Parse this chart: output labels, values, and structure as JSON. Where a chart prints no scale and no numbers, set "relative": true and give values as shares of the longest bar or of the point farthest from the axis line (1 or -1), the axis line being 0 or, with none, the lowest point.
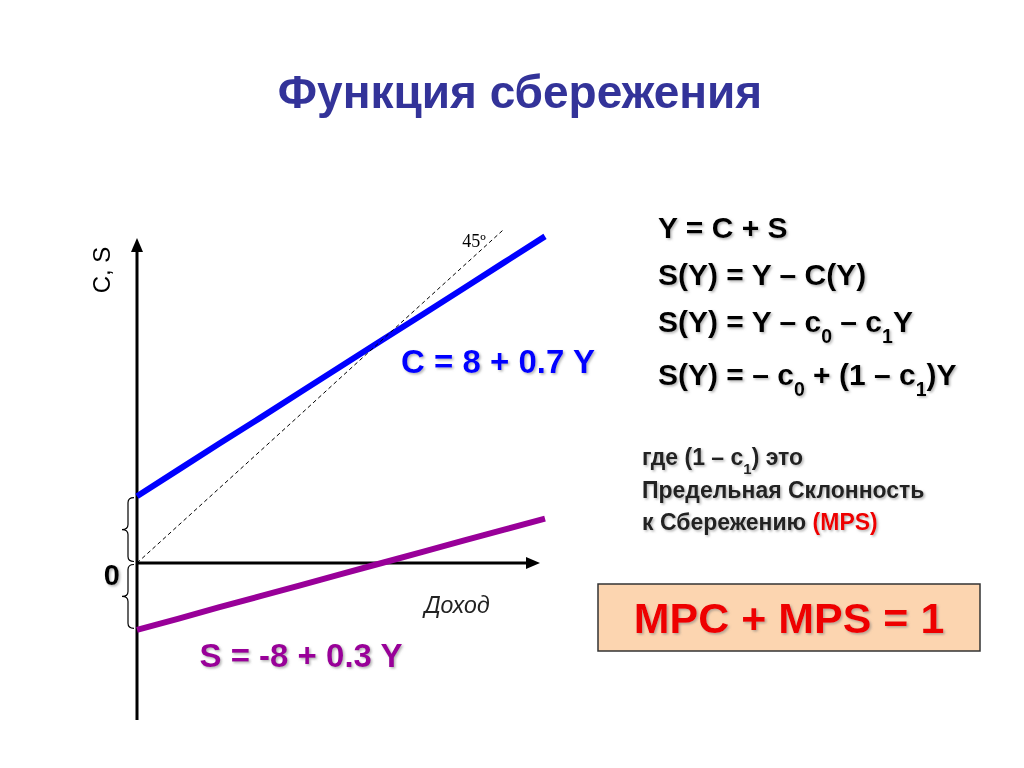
{
  "chart_data": {
    "type": "line",
    "title": "Функция сбережения",
    "xlabel": "Доход",
    "ylabel": "C, S",
    "relative": true,
    "categories": [
      null,
      null,
      null,
      null,
      null,
      null,
      null,
      null,
      null,
      null,
      null
    ],
    "series": [
      {
        "name": "C = 8 + 0.7 Y",
        "color": "#0000ff",
        "line_style": "solid",
        "values": [
          0.2,
          0.278,
          0.356,
          0.433,
          0.511,
          0.589,
          0.667,
          0.744,
          0.822,
          0.9,
          0.978
        ]
      },
      {
        "name": "S = -8 + 0.3 Y",
        "color": "#990099",
        "line_style": "solid",
        "values": [
          -0.2,
          -0.167,
          -0.133,
          -0.1,
          -0.067,
          -0.033,
          0,
          0.033,
          0.067,
          0.1,
          0.133
        ]
      },
      {
        "name": "45º",
        "color": "#000000",
        "line_style": "dashed",
        "values": [
          0,
          0.111,
          0.222,
          0.333,
          0.444,
          0.556,
          0.667,
          0.778,
          0.889,
          1,
          null
        ]
      }
    ],
    "annotations": [
      "Y = C + S",
      "S(Y) = Y – C(Y)",
      "S(Y) = Y – c$_{0}$ – c$_{1}$Y",
      "S(Y) = – c$_{0}$ + (1 – c$_{1}$)Y",
      "где (1 – c$_{1}$) это",
      "Предельная Склонность",
      "к Сбережению",
      "(MPS)",
      "MPC + MPS = 1",
      "0"
    ]
  }
}
